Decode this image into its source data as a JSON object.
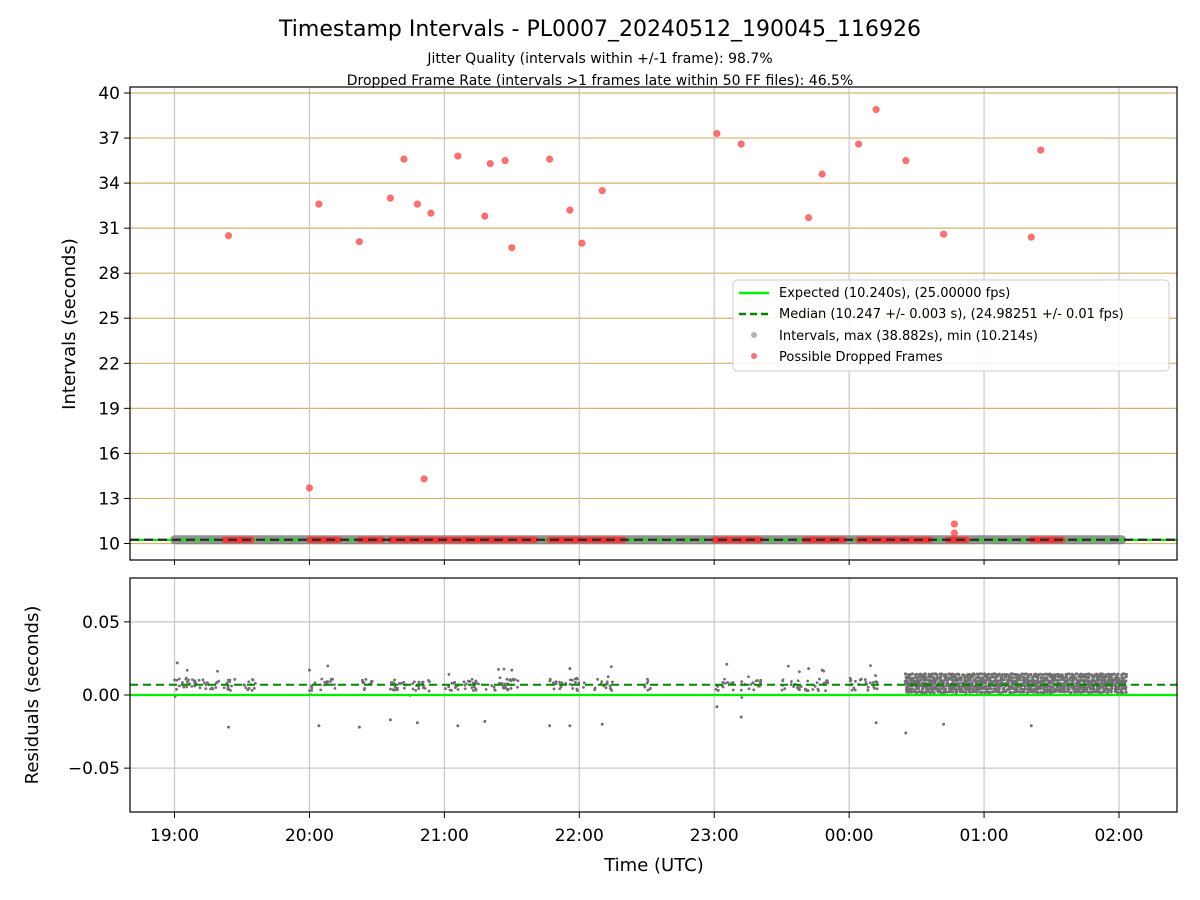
{
  "chart_data": [
    {
      "type": "scatter",
      "title": "Timestamp Intervals - PL0007_20240512_190045_116926",
      "subtitle_lines": [
        "Jitter Quality (intervals within +/-1 frame): 98.7%",
        "Dropped Frame Rate (intervals >1 frames late within 50 FF files): 46.5%"
      ],
      "ylabel": "Intervals (seconds)",
      "xlabel": "",
      "ylim": [
        8.9,
        40.4
      ],
      "yticks": [
        10,
        13,
        16,
        19,
        22,
        25,
        28,
        31,
        34,
        37,
        40
      ],
      "xlim_hours": [
        18.67,
        26.43
      ],
      "grid": true,
      "legend_position": "center-right",
      "reference_lines": {
        "expected": {
          "label": "Expected (10.240s), (25.00000 fps)",
          "value": 10.24,
          "color": "#00ee00"
        },
        "median": {
          "label": "Median (10.247 +/- 0.003 s), (24.98251 +/- 0.01 fps)",
          "value": 10.247,
          "color": "#008800"
        }
      },
      "series": [
        {
          "name": "Intervals, max (38.882s), min (10.214s)",
          "color": "#808080",
          "kind": "band",
          "segments": [
            [
              19.0,
              26.02
            ]
          ],
          "value": 10.247
        },
        {
          "name": "Possible Dropped Frames",
          "color": "#ff4040",
          "points": [
            [
              19.4,
              30.5
            ],
            [
              20.0,
              13.7
            ],
            [
              20.07,
              32.6
            ],
            [
              20.37,
              30.1
            ],
            [
              20.6,
              33.0
            ],
            [
              20.7,
              35.6
            ],
            [
              20.8,
              32.6
            ],
            [
              20.85,
              14.3
            ],
            [
              20.9,
              32.0
            ],
            [
              21.1,
              35.8
            ],
            [
              21.3,
              31.8
            ],
            [
              21.34,
              35.3
            ],
            [
              21.45,
              35.5
            ],
            [
              21.5,
              29.7
            ],
            [
              21.78,
              35.6
            ],
            [
              21.93,
              32.2
            ],
            [
              22.02,
              30.0
            ],
            [
              22.17,
              33.5
            ],
            [
              23.02,
              37.3
            ],
            [
              23.2,
              36.6
            ],
            [
              23.7,
              31.7
            ],
            [
              23.8,
              34.6
            ],
            [
              24.07,
              36.6
            ],
            [
              24.2,
              38.9
            ],
            [
              24.42,
              35.5
            ],
            [
              24.7,
              30.6
            ],
            [
              24.78,
              11.3
            ],
            [
              24.78,
              10.7
            ],
            [
              25.35,
              30.4
            ],
            [
              25.42,
              36.2
            ]
          ],
          "baseline_clusters": [
            [
              19.37,
              19.57
            ],
            [
              20.0,
              20.22
            ],
            [
              20.37,
              20.54
            ],
            [
              20.6,
              21.08
            ],
            [
              21.08,
              21.27
            ],
            [
              21.28,
              21.67
            ],
            [
              21.78,
              22.33
            ],
            [
              23.0,
              23.18
            ],
            [
              23.18,
              23.34
            ],
            [
              23.67,
              23.96
            ],
            [
              24.07,
              24.37
            ],
            [
              24.4,
              24.6
            ],
            [
              24.73,
              24.87
            ],
            [
              25.35,
              25.58
            ]
          ],
          "baseline_value": 10.247
        }
      ]
    },
    {
      "type": "scatter",
      "ylabel": "Residuals (seconds)",
      "xlabel": "Time (UTC)",
      "ylim": [
        -0.08,
        0.08
      ],
      "yticks": [
        0.05,
        0.0,
        -0.05
      ],
      "ytick_labels": [
        "0.05",
        "0.00",
        "−0.05"
      ],
      "xlim_hours": [
        18.67,
        26.43
      ],
      "xticks_hours": [
        19,
        20,
        21,
        22,
        23,
        24,
        25,
        26
      ],
      "xtick_labels": [
        "19:00",
        "20:00",
        "21:00",
        "22:00",
        "23:00",
        "00:00",
        "01:00",
        "02:00"
      ],
      "grid": true,
      "reference_lines": {
        "zero": {
          "value": 0.0,
          "color": "#00ee00"
        },
        "median": {
          "value": 0.007,
          "color": "#008800"
        }
      },
      "series": [
        {
          "name": "Residuals",
          "color": "#707070",
          "clusters": [
            [
              19.0,
              19.45
            ],
            [
              19.5,
              19.6
            ],
            [
              20.0,
              20.2
            ],
            [
              20.37,
              20.47
            ],
            [
              20.6,
              20.9
            ],
            [
              21.0,
              21.27
            ],
            [
              21.3,
              21.55
            ],
            [
              21.78,
              21.9
            ],
            [
              21.93,
              22.05
            ],
            [
              22.1,
              22.25
            ],
            [
              22.48,
              22.55
            ],
            [
              23.0,
              23.15
            ],
            [
              23.2,
              23.35
            ],
            [
              23.5,
              23.7
            ],
            [
              23.72,
              23.85
            ],
            [
              24.0,
              24.22
            ]
          ],
          "dense_region": [
            24.42,
            26.05
          ],
          "outliers": [
            [
              19.02,
              0.022
            ],
            [
              19.4,
              -0.022
            ],
            [
              20.07,
              -0.021
            ],
            [
              20.37,
              -0.022
            ],
            [
              20.6,
              -0.017
            ],
            [
              20.8,
              -0.019
            ],
            [
              21.1,
              -0.021
            ],
            [
              21.3,
              -0.018
            ],
            [
              21.78,
              -0.021
            ],
            [
              21.93,
              -0.021
            ],
            [
              22.17,
              -0.02
            ],
            [
              23.02,
              -0.008
            ],
            [
              23.2,
              -0.015
            ],
            [
              24.2,
              -0.019
            ],
            [
              24.42,
              -0.026
            ],
            [
              24.7,
              -0.02
            ],
            [
              25.35,
              -0.021
            ],
            [
              20.0,
              0.017
            ],
            [
              21.93,
              0.018
            ],
            [
              21.5,
              0.017
            ],
            [
              23.7,
              0.018
            ],
            [
              23.8,
              0.017
            ]
          ]
        }
      ]
    }
  ]
}
